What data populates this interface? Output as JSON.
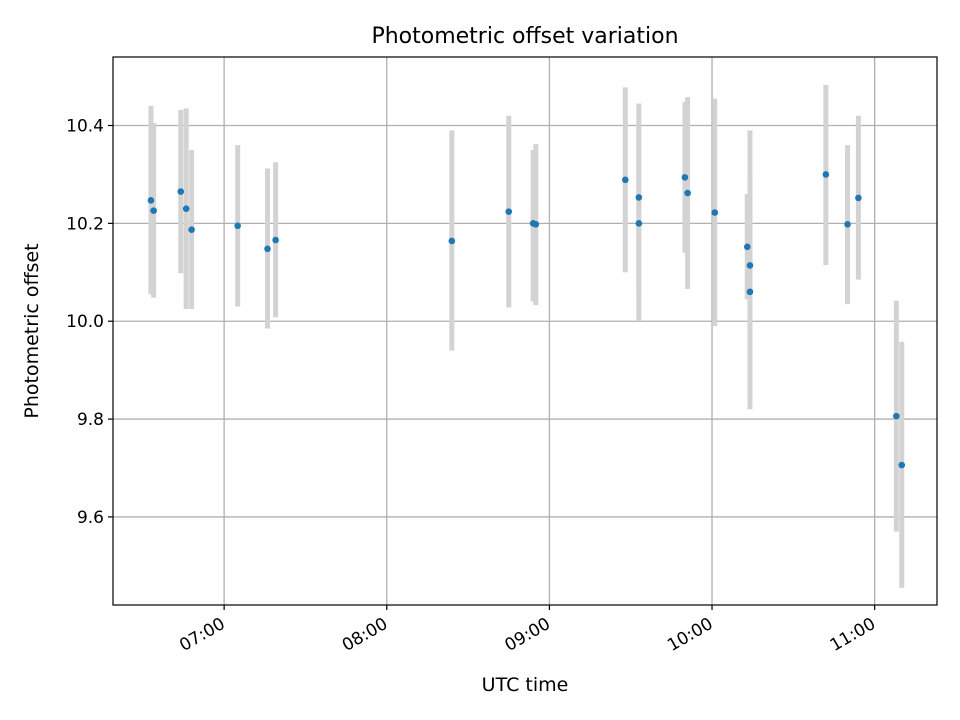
{
  "chart_data": {
    "type": "scatter",
    "title": "Photometric offset variation",
    "xlabel": "UTC time",
    "ylabel": "Photometric offset",
    "x_ticks": [
      "07:00",
      "08:00",
      "09:00",
      "10:00",
      "11:00"
    ],
    "y_ticks": [
      "9.6",
      "9.8",
      "10.0",
      "10.2",
      "10.4"
    ],
    "xlim": [
      "06:19",
      "11:23"
    ],
    "ylim": [
      9.42,
      10.54
    ],
    "grid": true,
    "legend": "none",
    "colors": {
      "point": "#1f77b4",
      "errorbar": "#d3d3d3",
      "grid": "#b0b0b0"
    },
    "points": [
      {
        "t": "06:33",
        "y": 10.247,
        "lo": 10.055,
        "hi": 10.44
      },
      {
        "t": "06:34",
        "y": 10.226,
        "lo": 10.048,
        "hi": 10.405
      },
      {
        "t": "06:44",
        "y": 10.265,
        "lo": 10.098,
        "hi": 10.432
      },
      {
        "t": "06:46",
        "y": 10.23,
        "lo": 10.025,
        "hi": 10.435
      },
      {
        "t": "06:48",
        "y": 10.187,
        "lo": 10.025,
        "hi": 10.35
      },
      {
        "t": "07:05",
        "y": 10.195,
        "lo": 10.03,
        "hi": 10.36
      },
      {
        "t": "07:16",
        "y": 10.148,
        "lo": 9.985,
        "hi": 10.312
      },
      {
        "t": "07:19",
        "y": 10.166,
        "lo": 10.008,
        "hi": 10.325
      },
      {
        "t": "08:24",
        "y": 10.164,
        "lo": 9.94,
        "hi": 10.39
      },
      {
        "t": "08:45",
        "y": 10.224,
        "lo": 10.028,
        "hi": 10.42
      },
      {
        "t": "08:54",
        "y": 10.2,
        "lo": 10.04,
        "hi": 10.35
      },
      {
        "t": "08:55",
        "y": 10.198,
        "lo": 10.033,
        "hi": 10.362
      },
      {
        "t": "09:28",
        "y": 10.289,
        "lo": 10.1,
        "hi": 10.478
      },
      {
        "t": "09:33",
        "y": 10.2,
        "lo": 10.0,
        "hi": 10.4
      },
      {
        "t": "09:33",
        "y": 10.253,
        "lo": 10.062,
        "hi": 10.445
      },
      {
        "t": "09:50",
        "y": 10.294,
        "lo": 10.14,
        "hi": 10.448
      },
      {
        "t": "09:51",
        "y": 10.262,
        "lo": 10.066,
        "hi": 10.458
      },
      {
        "t": "10:01",
        "y": 10.222,
        "lo": 9.99,
        "hi": 10.455
      },
      {
        "t": "10:13",
        "y": 10.152,
        "lo": 10.045,
        "hi": 10.26
      },
      {
        "t": "10:14",
        "y": 10.114,
        "lo": 9.838,
        "hi": 10.39
      },
      {
        "t": "10:14",
        "y": 10.06,
        "lo": 9.82,
        "hi": 10.295
      },
      {
        "t": "10:42",
        "y": 10.3,
        "lo": 10.115,
        "hi": 10.483
      },
      {
        "t": "10:50",
        "y": 10.198,
        "lo": 10.035,
        "hi": 10.36
      },
      {
        "t": "10:54",
        "y": 10.252,
        "lo": 10.085,
        "hi": 10.42
      },
      {
        "t": "11:08",
        "y": 9.806,
        "lo": 9.57,
        "hi": 10.042
      },
      {
        "t": "11:10",
        "y": 9.706,
        "lo": 9.455,
        "hi": 9.958
      }
    ]
  }
}
